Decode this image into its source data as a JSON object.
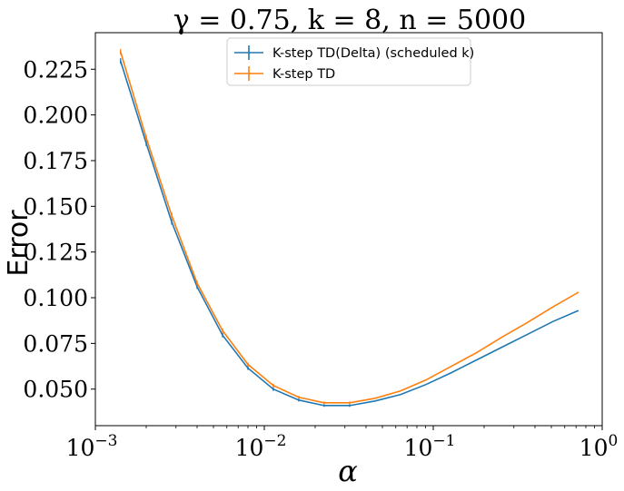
{
  "chart_data": {
    "type": "line",
    "title": "γ = 0.75, k = 8, n = 5000",
    "xlabel": "α",
    "ylabel": "Error",
    "x_scale": "log",
    "xlim": [
      0.001,
      1
    ],
    "ylim": [
      0.03,
      0.245
    ],
    "x_ticks": [
      {
        "value": 0.001,
        "base": "10",
        "exp": "−3"
      },
      {
        "value": 0.01,
        "base": "10",
        "exp": "−2"
      },
      {
        "value": 0.1,
        "base": "10",
        "exp": "−1"
      },
      {
        "value": 1,
        "base": "10",
        "exp": "0"
      }
    ],
    "y_ticks": [
      {
        "value": 0.05,
        "label": "0.050"
      },
      {
        "value": 0.075,
        "label": "0.075"
      },
      {
        "value": 0.1,
        "label": "0.100"
      },
      {
        "value": 0.125,
        "label": "0.125"
      },
      {
        "value": 0.15,
        "label": "0.150"
      },
      {
        "value": 0.175,
        "label": "0.175"
      },
      {
        "value": 0.2,
        "label": "0.200"
      },
      {
        "value": 0.225,
        "label": "0.225"
      }
    ],
    "grid": false,
    "legend_position": "top-center",
    "x": [
      0.00141,
      0.002,
      0.00283,
      0.004,
      0.00566,
      0.008,
      0.0113,
      0.016,
      0.0226,
      0.032,
      0.0453,
      0.064,
      0.0905,
      0.128,
      0.181,
      0.256,
      0.362,
      0.512,
      0.724
    ],
    "series": [
      {
        "name": "K-step TD(Delta) (scheduled k)",
        "color": "#1f77b4",
        "values": [
          0.2295,
          0.1845,
          0.1415,
          0.106,
          0.0795,
          0.0615,
          0.05,
          0.044,
          0.041,
          0.041,
          0.0435,
          0.047,
          0.0525,
          0.059,
          0.066,
          0.073,
          0.08,
          0.087,
          0.093
        ],
        "error": [
          0.0015,
          0.0015,
          0.0015,
          0.0012,
          0.0012,
          0.001,
          0.001,
          0.0008,
          0.0007,
          0.0007,
          0,
          0,
          0,
          0,
          0,
          0,
          0,
          0,
          0
        ]
      },
      {
        "name": "K-step TD",
        "color": "#ff7f0e",
        "values": [
          0.2345,
          0.1875,
          0.145,
          0.108,
          0.082,
          0.0635,
          0.052,
          0.0455,
          0.0425,
          0.0425,
          0.045,
          0.049,
          0.055,
          0.0625,
          0.07,
          0.0785,
          0.0865,
          0.095,
          0.103
        ],
        "error": [
          0.0015,
          0.0015,
          0.0015,
          0.0012,
          0.0012,
          0.001,
          0.001,
          0.0008,
          0.0007,
          0.0007,
          0,
          0,
          0,
          0,
          0,
          0,
          0,
          0,
          0
        ]
      }
    ]
  }
}
